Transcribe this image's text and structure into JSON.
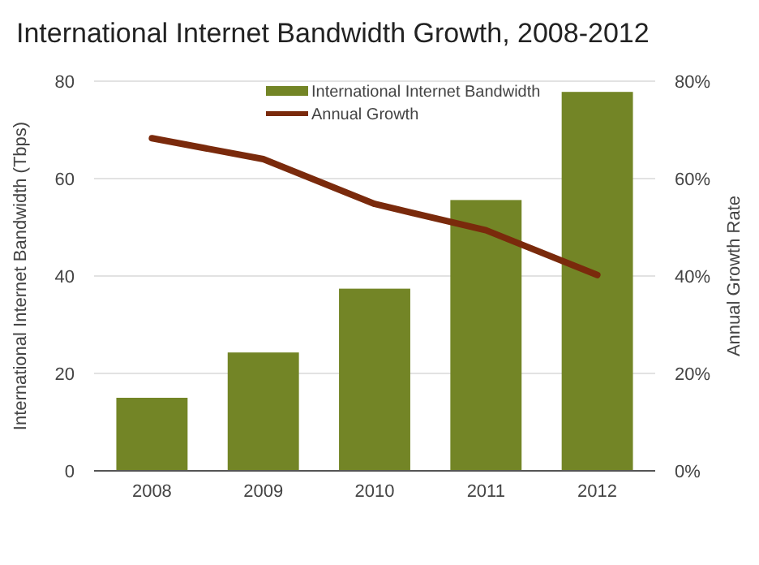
{
  "chart_data": {
    "type": "bar",
    "title": "International Internet Bandwidth Growth, 2008-2012",
    "categories": [
      "2008",
      "2009",
      "2010",
      "2011",
      "2012"
    ],
    "series": [
      {
        "name": "International Internet Bandwidth",
        "color": "#738526",
        "values": [
          15,
          24.3,
          37.4,
          55.6,
          77.8
        ]
      },
      {
        "name": "Annual Growth",
        "type": "line",
        "axis": "y2",
        "color": "#7a2a0c",
        "values": [
          68.3,
          64,
          54.8,
          49.4,
          40.2
        ]
      }
    ],
    "ylabel": "International Internet Bandwidth (Tbps)",
    "y2label": "Annual Growth Rate",
    "ylim": [
      0,
      80
    ],
    "yticks": [
      0,
      20,
      40,
      60,
      80
    ],
    "y2lim": [
      0,
      80
    ],
    "y2ticks": [
      {
        "value": 0,
        "label": "0%"
      },
      {
        "value": 20,
        "label": "20%"
      },
      {
        "value": 40,
        "label": "40%"
      },
      {
        "value": 60,
        "label": "60%"
      },
      {
        "value": 80,
        "label": "80%"
      }
    ],
    "grid": "y",
    "legend": "top"
  }
}
